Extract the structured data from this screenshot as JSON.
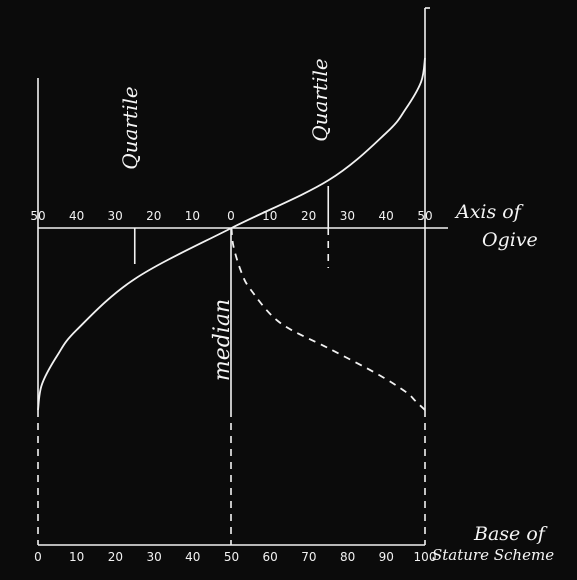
{
  "colors": {
    "background": "#0b0b0b",
    "ink": "#f2f2f2",
    "margin": "#ffffff"
  },
  "ogive_axis": {
    "label_line1": "Axis of",
    "label_line2": "Ogive",
    "left_ticks": [
      "50",
      "40",
      "30",
      "20",
      "10",
      "0"
    ],
    "right_ticks": [
      "10",
      "20",
      "30",
      "40",
      "50"
    ]
  },
  "base_axis": {
    "label_line1": "Base of",
    "label_line2": "Stature Scheme",
    "ticks": [
      "0",
      "10",
      "20",
      "30",
      "40",
      "50",
      "60",
      "70",
      "80",
      "90",
      "100"
    ]
  },
  "annotations": {
    "left_quartile": "Quartile",
    "right_quartile": "Quartile",
    "median": "median"
  },
  "chart_data": {
    "type": "line",
    "series": [
      {
        "style": "solid",
        "x": [
          0,
          1,
          5,
          10,
          25,
          50,
          75,
          90,
          95,
          99,
          100
        ],
        "y": [
          -50,
          -43,
          -35,
          -28,
          -14,
          0,
          14,
          28,
          35,
          43,
          50
        ]
      },
      {
        "style": "dashed",
        "x": [
          0,
          1,
          5,
          10,
          25,
          50,
          75,
          90,
          95,
          99,
          100
        ],
        "y": [
          0,
          10,
          24,
          34,
          52,
          66,
          80,
          90,
          95,
          99,
          100
        ]
      }
    ],
    "quartiles_x": [
      25,
      75
    ],
    "median_x": 50,
    "ogive_axis_range": [
      -50,
      50
    ],
    "base_axis_range": [
      0,
      100
    ]
  }
}
